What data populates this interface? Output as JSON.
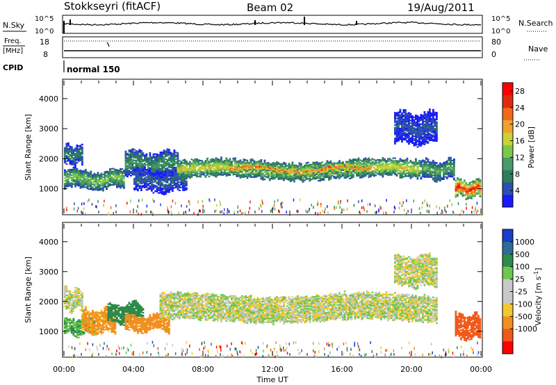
{
  "header": {
    "radar": "Stokkseyri (fitACF)",
    "beam": "Beam 02",
    "date": "19/Aug/2011"
  },
  "noise_panel": {
    "left_label": "N.Sky",
    "left_ticks": [
      "10^5",
      "10^0"
    ],
    "right_label": "N.Search",
    "right_ticks": [
      "10^5",
      "10^0"
    ]
  },
  "freq_panel": {
    "left_label_line1": "Freq.",
    "left_label_line2": "[MHz]",
    "left_ticks": [
      "18",
      "8"
    ],
    "right_label": "Nave",
    "right_ticks": [
      "80",
      "0"
    ]
  },
  "cpid_panel": {
    "label": "CPID",
    "mode": "normal 150"
  },
  "colors": {
    "power_scale": [
      "#1a1aff",
      "#2c4fb0",
      "#2e7d5a",
      "#4a9a6c",
      "#7dc84a",
      "#c8d236",
      "#f0a030",
      "#f06a1a",
      "#e02a10",
      "#ff0000"
    ],
    "velocity_scale": [
      "#1a3cc8",
      "#2e6a9a",
      "#2e8a4a",
      "#6cc850",
      "#c8c8c8",
      "#c8c8c8",
      "#f0c830",
      "#f09020",
      "#f05a1a",
      "#ff0000"
    ]
  },
  "chart_data": [
    {
      "type": "heatmap",
      "quantity": "Power",
      "ylabel": "Slant Range [km]",
      "ylim": [
        180,
        4600
      ],
      "yticks": [
        1000,
        2000,
        3000,
        4000
      ],
      "xticks": [
        "00:00",
        "04:00",
        "08:00",
        "12:00",
        "16:00",
        "20:00",
        "00:00"
      ],
      "colorbar_label": "Power [dB]",
      "colorbar_ticks": [
        4,
        8,
        12,
        16,
        20,
        24,
        28
      ],
      "colorbar_range": [
        0,
        30
      ],
      "echo_regions": [
        {
          "t_start": 0.0,
          "t_end": 3.5,
          "r_low": 1000,
          "r_high": 1600,
          "power": 14
        },
        {
          "t_start": 0.0,
          "t_end": 1.0,
          "r_low": 1800,
          "r_high": 2400,
          "power": 8
        },
        {
          "t_start": 3.5,
          "t_end": 6.5,
          "r_low": 1400,
          "r_high": 2200,
          "power": 10
        },
        {
          "t_start": 4.0,
          "t_end": 7.0,
          "r_low": 900,
          "r_high": 1600,
          "power": 6
        },
        {
          "t_start": 6.5,
          "t_end": 20.5,
          "r_low": 1350,
          "r_high": 1900,
          "power": 18
        },
        {
          "t_start": 9.5,
          "t_end": 17.5,
          "r_low": 1500,
          "r_high": 1750,
          "power": 24
        },
        {
          "t_start": 20.5,
          "t_end": 22.5,
          "r_low": 1300,
          "r_high": 1900,
          "power": 12
        },
        {
          "t_start": 22.5,
          "t_end": 24.0,
          "r_low": 700,
          "r_high": 1250,
          "power": 27
        },
        {
          "t_start": 19.0,
          "t_end": 21.5,
          "r_low": 2500,
          "r_high": 3500,
          "power": 5
        }
      ]
    },
    {
      "type": "heatmap",
      "quantity": "Velocity",
      "ylabel": "Slant Range [km]",
      "ylim": [
        180,
        4600
      ],
      "yticks": [
        1000,
        2000,
        3000,
        4000
      ],
      "xticks": [
        "00:00",
        "04:00",
        "08:00",
        "12:00",
        "16:00",
        "20:00",
        "00:00"
      ],
      "xlabel": "Time UT",
      "colorbar_label": "Velocity [m s^-1]",
      "colorbar_ticks": [
        1000,
        500,
        100,
        25,
        -25,
        -100,
        -500,
        -1000
      ],
      "echo_regions": [
        {
          "t_start": 0.0,
          "t_end": 1.8,
          "r_low": 900,
          "r_high": 1400,
          "velocity": 100
        },
        {
          "t_start": 1.0,
          "t_end": 3.0,
          "r_low": 950,
          "r_high": 1700,
          "velocity": -150
        },
        {
          "t_start": 2.5,
          "t_end": 4.5,
          "r_low": 1300,
          "r_high": 1900,
          "velocity": 200
        },
        {
          "t_start": 3.5,
          "t_end": 6.0,
          "r_low": 1000,
          "r_high": 1500,
          "velocity": -300
        },
        {
          "t_start": 0.0,
          "t_end": 1.0,
          "r_low": 1700,
          "r_high": 2400,
          "velocity": 0
        },
        {
          "t_start": 5.5,
          "t_end": 21.5,
          "r_low": 1350,
          "r_high": 2200,
          "velocity": 0
        },
        {
          "t_start": 19.0,
          "t_end": 21.5,
          "r_low": 2500,
          "r_high": 3500,
          "velocity": 0
        },
        {
          "t_start": 22.5,
          "t_end": 24.0,
          "r_low": 750,
          "r_high": 1550,
          "velocity": -600
        }
      ]
    }
  ]
}
